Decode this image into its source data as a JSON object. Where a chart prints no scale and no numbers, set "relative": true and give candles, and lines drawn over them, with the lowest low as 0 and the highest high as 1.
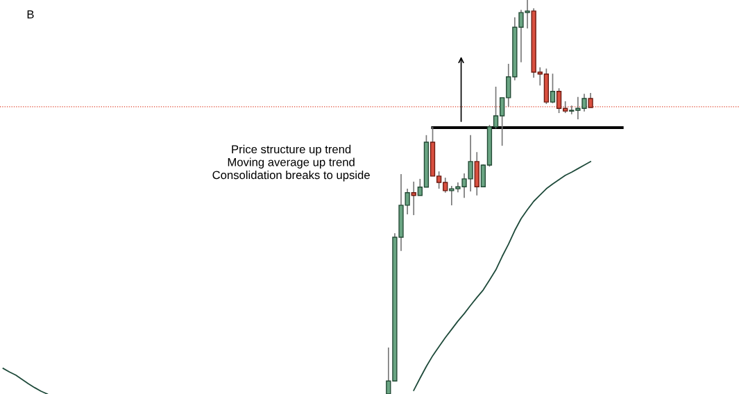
{
  "chart_data": {
    "type": "candlestick",
    "relative": true,
    "legend": false,
    "categories": [
      null,
      null,
      null,
      null,
      null,
      null,
      null,
      null,
      null,
      null,
      null,
      null,
      null,
      null,
      null,
      null,
      null,
      null,
      null,
      null,
      null,
      null,
      null,
      null,
      null,
      null,
      null,
      null,
      null,
      null,
      null,
      null,
      null,
      null,
      null,
      null,
      null,
      null,
      null,
      null,
      null,
      null,
      null,
      null,
      null,
      null,
      null,
      null,
      null,
      null,
      null,
      null,
      null,
      null,
      null,
      null,
      null,
      null,
      null,
      null,
      null,
      null,
      null,
      null,
      null,
      null,
      null,
      null,
      null,
      null,
      null,
      null,
      null,
      null,
      null,
      null,
      null,
      null,
      null,
      null,
      null,
      null,
      null,
      null,
      null,
      null,
      null,
      null,
      null,
      null,
      null,
      null,
      null,
      null,
      null,
      null,
      null,
      null,
      null,
      null,
      null,
      null,
      null,
      null,
      null,
      null,
      null,
      null,
      null,
      null,
      null,
      null,
      null,
      null,
      null,
      null,
      null
    ],
    "ohlc": [
      null,
      null,
      null,
      null,
      null,
      null,
      null,
      null,
      null,
      null,
      null,
      null,
      null,
      null,
      null,
      null,
      null,
      null,
      null,
      null,
      null,
      null,
      null,
      null,
      null,
      null,
      null,
      null,
      null,
      null,
      null,
      null,
      null,
      null,
      null,
      null,
      null,
      null,
      null,
      null,
      null,
      null,
      null,
      null,
      null,
      null,
      null,
      null,
      null,
      null,
      null,
      null,
      null,
      null,
      null,
      null,
      null,
      null,
      null,
      null,
      null,
      [
        0,
        0.118,
        0,
        0.033
      ],
      [
        0.033,
        0.408,
        0.032,
        0.398
      ],
      [
        0.398,
        0.558,
        0.363,
        0.479
      ],
      [
        0.479,
        0.521,
        0.456,
        0.511
      ],
      [
        0.511,
        0.539,
        0.454,
        0.504
      ],
      [
        0.504,
        0.546,
        0.504,
        0.525
      ],
      [
        0.525,
        0.657,
        0.525,
        0.639
      ],
      [
        0.639,
        0.678,
        0.553,
        0.553
      ],
      [
        0.553,
        0.565,
        0.521,
        0.537
      ],
      [
        0.537,
        0.549,
        0.511,
        0.516
      ],
      [
        0.516,
        0.528,
        0.479,
        0.521
      ],
      [
        0.521,
        0.537,
        0.512,
        0.526
      ],
      [
        0.526,
        0.56,
        0.498,
        0.546
      ],
      [
        0.546,
        0.657,
        0.514,
        0.59
      ],
      [
        0.59,
        0.614,
        0.504,
        0.526
      ],
      [
        0.526,
        0.583,
        0.525,
        0.581
      ],
      [
        0.581,
        0.683,
        0.577,
        0.678
      ],
      [
        0.678,
        0.78,
        0.674,
        0.706
      ],
      [
        0.706,
        0.752,
        0.63,
        0.752
      ],
      [
        0.752,
        0.838,
        0.729,
        0.805
      ],
      [
        0.805,
        0.956,
        0.796,
        0.931
      ],
      [
        0.931,
        0.975,
        0.842,
        0.968
      ],
      [
        0.968,
        1,
        0.928,
        0.972
      ],
      [
        0.972,
        0.979,
        0.803,
        0.817
      ],
      [
        0.817,
        0.829,
        0.783,
        0.812
      ],
      [
        0.812,
        0.826,
        0.736,
        0.741
      ],
      [
        0.741,
        0.813,
        0.738,
        0.768
      ],
      [
        0.768,
        0.776,
        0.713,
        0.725
      ],
      [
        0.725,
        0.743,
        0.713,
        0.718
      ],
      [
        0.718,
        0.732,
        0.71,
        0.72
      ],
      [
        0.72,
        0.754,
        0.697,
        0.725
      ],
      [
        0.725,
        0.762,
        0.717,
        0.75
      ],
      [
        0.75,
        0.764,
        0.727,
        0.727
      ],
      null,
      null,
      null,
      null,
      null,
      null,
      null,
      null,
      null,
      null,
      null,
      null,
      null,
      null,
      null,
      null,
      null,
      null,
      null,
      null,
      null,
      null,
      null
    ],
    "series": [
      {
        "type": "line",
        "color": "#1e4a3a",
        "values": [
          0.065,
          0.056,
          0.048,
          0.037,
          0.026,
          0.016,
          0.007,
          0,
          null,
          null,
          null,
          null,
          null,
          null,
          null,
          null,
          null,
          null,
          null,
          null,
          null,
          null,
          null,
          null,
          null,
          null,
          null,
          null,
          null,
          null,
          null,
          null,
          null,
          null,
          null,
          null,
          null,
          null,
          null,
          null,
          null,
          null,
          null,
          null,
          null,
          null,
          null,
          null,
          null,
          null,
          null,
          null,
          null,
          null,
          null,
          null,
          null,
          null,
          null,
          null,
          null,
          null,
          null,
          null,
          null,
          0.009,
          0.04,
          0.07,
          0.097,
          0.12,
          0.143,
          0.164,
          0.185,
          0.204,
          0.225,
          0.245,
          0.264,
          0.289,
          0.315,
          0.349,
          0.38,
          0.415,
          0.445,
          0.468,
          0.489,
          0.505,
          0.521,
          0.533,
          0.544,
          0.555,
          0.563,
          0.572,
          0.581,
          0.59,
          null,
          null,
          null,
          null,
          null,
          null,
          null,
          null,
          null,
          null,
          null,
          null,
          null,
          null,
          null,
          null,
          null,
          null,
          null,
          null,
          null,
          null,
          null
        ]
      },
      {
        "type": "line",
        "color": "#000000",
        "values": [
          null,
          null,
          null,
          null,
          null,
          null,
          null,
          null,
          null,
          null,
          null,
          null,
          null,
          null,
          null,
          null,
          null,
          null,
          null,
          null,
          null,
          null,
          null,
          null,
          null,
          null,
          null,
          null,
          null,
          null,
          null,
          null,
          null,
          null,
          null,
          null,
          null,
          null,
          null,
          null,
          null,
          null,
          null,
          null,
          null,
          null,
          null,
          null,
          null,
          null,
          null,
          null,
          null,
          null,
          null,
          null,
          null,
          null,
          null,
          null,
          null,
          null,
          null,
          null,
          null,
          null,
          null,
          null,
          0.676,
          0.676,
          0.676,
          0.676,
          0.676,
          0.676,
          0.676,
          0.676,
          0.676,
          0.676,
          0.676,
          0.676,
          0.676,
          0.676,
          0.676,
          0.676,
          0.676,
          0.676,
          0.676,
          0.676,
          0.676,
          0.676,
          0.676,
          0.676,
          0.676,
          0.676,
          0.676,
          0.676,
          0.676,
          0.676,
          0.676,
          null,
          null,
          null,
          null,
          null,
          null,
          null,
          null,
          null,
          null,
          null,
          null,
          null,
          null,
          null,
          null,
          null,
          null
        ]
      }
    ],
    "ref_lines": [
      {
        "axis": "y",
        "value": 0.729,
        "color": "#e0402a",
        "line_style": "dotted"
      }
    ],
    "annotations": [
      "B",
      "Price structure up trend\nMoving average up trend\nConsolidation breaks to upside"
    ]
  }
}
